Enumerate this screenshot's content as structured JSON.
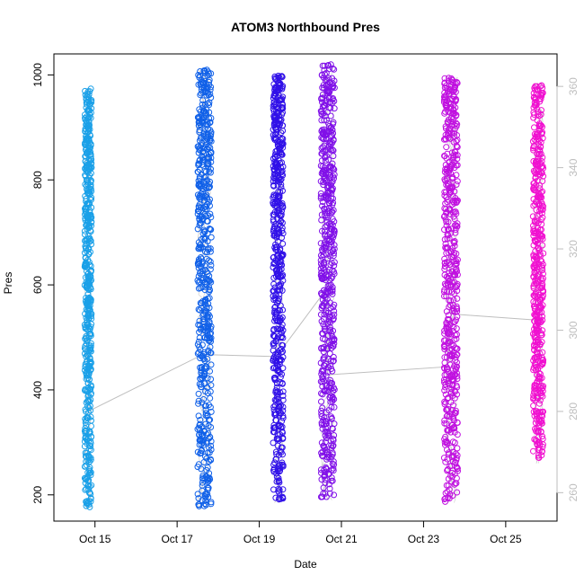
{
  "chart_data": {
    "type": "scatter",
    "title": "ATOM3 Northbound Pres",
    "xlabel": "Date",
    "ylabel": "Pres",
    "xlim": [
      "2015-10-14T00:00",
      "2015-10-26T06:00"
    ],
    "ylim": [
      150,
      1040
    ],
    "y2lim": [
      253,
      368
    ],
    "x_ticks": [
      {
        "value": "2015-10-15T00:00",
        "label": "Oct 15"
      },
      {
        "value": "2015-10-17T00:00",
        "label": "Oct 17"
      },
      {
        "value": "2015-10-19T00:00",
        "label": "Oct 19"
      },
      {
        "value": "2015-10-21T00:00",
        "label": "Oct 21"
      },
      {
        "value": "2015-10-23T00:00",
        "label": "Oct 23"
      },
      {
        "value": "2015-10-25T00:00",
        "label": "Oct 25"
      }
    ],
    "y_ticks": [
      200,
      400,
      600,
      800,
      1000
    ],
    "y2_ticks": [
      260,
      280,
      300,
      320,
      340,
      360
    ],
    "grid": false,
    "legend": "none",
    "colors": {
      "points_start": "#1a9ee8",
      "points_mid": "#5a0ee8",
      "points_end": "#ff10c8",
      "secondary_line": "#bebebe",
      "secondary_axis": "#bebebe"
    },
    "profile_groups": [
      {
        "start": "2015-10-14T18:00",
        "end": "2015-10-14T22:00",
        "pres_min": 175,
        "pres_max": 975,
        "color": "#1aa0e8"
      },
      {
        "start": "2015-10-17T12:00",
        "end": "2015-10-17T20:00",
        "pres_min": 175,
        "pres_max": 1010,
        "color": "#1060e8"
      },
      {
        "start": "2015-10-19T08:00",
        "end": "2015-10-19T14:00",
        "pres_min": 185,
        "pres_max": 1000,
        "color": "#3010e8"
      },
      {
        "start": "2015-10-20T12:00",
        "end": "2015-10-20T20:00",
        "pres_min": 190,
        "pres_max": 1020,
        "color": "#8010e8"
      },
      {
        "start": "2015-10-23T12:00",
        "end": "2015-10-23T20:00",
        "pres_min": 185,
        "pres_max": 995,
        "color": "#c010e0"
      },
      {
        "start": "2015-10-25T16:00",
        "end": "2015-10-25T22:00",
        "pres_min": 260,
        "pres_max": 985,
        "color": "#f010d0"
      }
    ],
    "secondary_series": {
      "x": [
        "2015-10-14T20:00",
        "2015-10-17T15:00",
        "2015-10-19T10:00",
        "2015-10-20T15:00",
        "2015-10-20T16:00",
        "2015-10-23T14:00",
        "2015-10-23T16:00",
        "2015-10-25T18:00"
      ],
      "y": [
        280,
        294,
        293.5,
        310,
        289,
        291,
        304,
        302.5
      ]
    }
  }
}
